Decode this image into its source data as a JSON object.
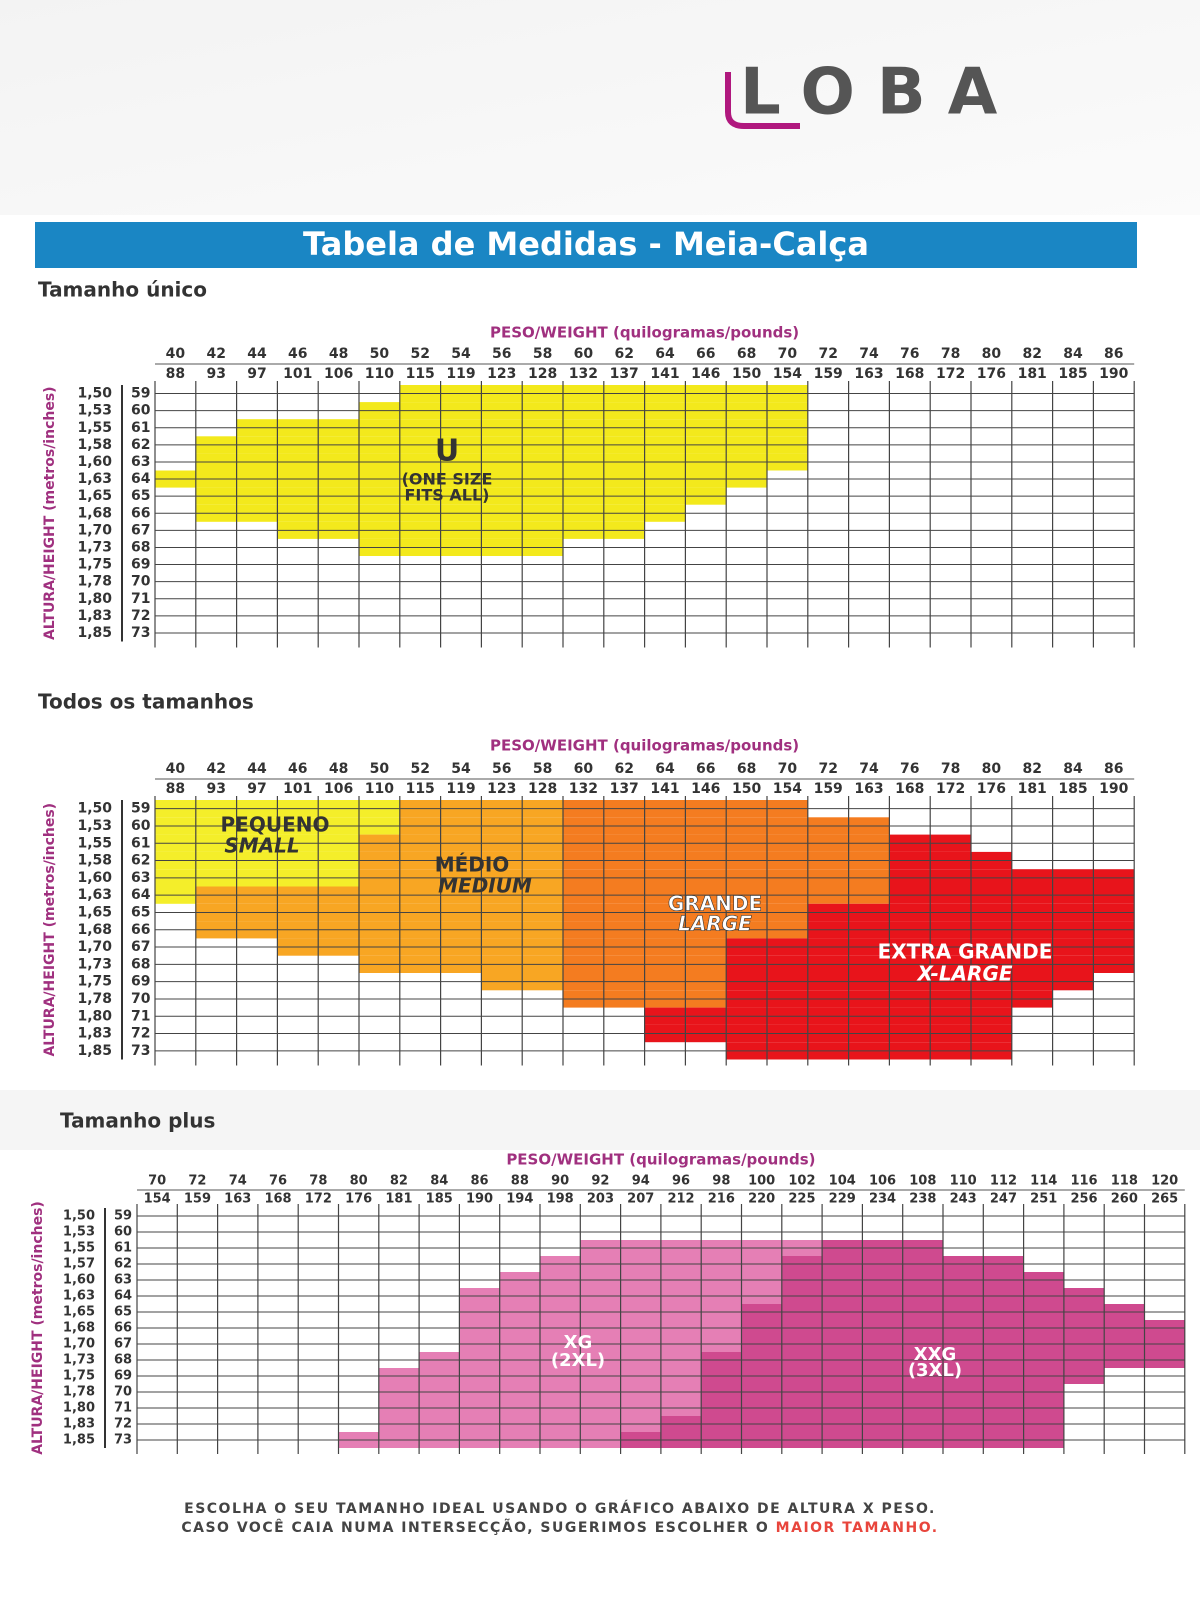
{
  "logo": "LOBA",
  "header": {
    "title": "Tabela de Medidas - Meia-Calça"
  },
  "tables": [
    {
      "subtitle": "Tamanho único",
      "x_axis_label": "PESO/WEIGHT (quilogramas/pounds)",
      "y_axis_label": "ALTURA/HEIGHT (metros/inches)",
      "weight_kg": [
        40,
        42,
        44,
        46,
        48,
        50,
        52,
        54,
        56,
        58,
        60,
        62,
        64,
        66,
        68,
        70,
        72,
        74,
        76,
        78,
        80,
        82,
        84,
        86
      ],
      "weight_lb": [
        88,
        93,
        97,
        101,
        106,
        110,
        115,
        119,
        123,
        128,
        132,
        137,
        141,
        146,
        150,
        154,
        159,
        163,
        168,
        172,
        176,
        181,
        185,
        190
      ],
      "height_m": [
        "1,50",
        "1,53",
        "1,55",
        "1,58",
        "1,60",
        "1,63",
        "1,65",
        "1,68",
        "1,70",
        "1,73",
        "1,75",
        "1,78",
        "1,80",
        "1,83",
        "1,85"
      ],
      "height_in": [
        59,
        60,
        61,
        62,
        63,
        64,
        65,
        66,
        67,
        68,
        69,
        70,
        71,
        72,
        73
      ],
      "sizes": [
        {
          "lines": [
            "U",
            "(ONE SIZE",
            "FITS ALL)"
          ]
        }
      ]
    },
    {
      "subtitle": "Todos os tamanhos",
      "x_axis_label": "PESO/WEIGHT (quilogramas/pounds)",
      "y_axis_label": "ALTURA/HEIGHT (metros/inches)",
      "weight_kg": [
        40,
        42,
        44,
        46,
        48,
        50,
        52,
        54,
        56,
        58,
        60,
        62,
        64,
        66,
        68,
        70,
        72,
        74,
        76,
        78,
        80,
        82,
        84,
        86
      ],
      "weight_lb": [
        88,
        93,
        97,
        101,
        106,
        110,
        115,
        119,
        123,
        128,
        132,
        137,
        141,
        146,
        150,
        154,
        159,
        163,
        168,
        172,
        176,
        181,
        185,
        190
      ],
      "height_m": [
        "1,50",
        "1,53",
        "1,55",
        "1,58",
        "1,60",
        "1,63",
        "1,65",
        "1,68",
        "1,70",
        "1,73",
        "1,75",
        "1,78",
        "1,80",
        "1,83",
        "1,85"
      ],
      "height_in": [
        59,
        60,
        61,
        62,
        63,
        64,
        65,
        66,
        67,
        68,
        69,
        70,
        71,
        72,
        73
      ],
      "sizes": [
        {
          "lines": [
            "PEQUENO",
            "SMALL"
          ]
        },
        {
          "lines": [
            "MÉDIO",
            "MEDIUM"
          ]
        },
        {
          "lines": [
            "GRANDE",
            "LARGE"
          ]
        },
        {
          "lines": [
            "EXTRA GRANDE",
            "X-LARGE"
          ]
        }
      ]
    },
    {
      "subtitle": "Tamanho plus",
      "x_axis_label": "PESO/WEIGHT (quilogramas/pounds)",
      "y_axis_label": "ALTURA/HEIGHT (metros/inches)",
      "weight_kg": [
        70,
        72,
        74,
        76,
        78,
        80,
        82,
        84,
        86,
        88,
        90,
        92,
        94,
        96,
        98,
        100,
        102,
        104,
        106,
        108,
        110,
        112,
        114,
        116,
        118,
        120
      ],
      "weight_lb": [
        154,
        159,
        163,
        168,
        172,
        176,
        181,
        185,
        190,
        194,
        198,
        203,
        207,
        212,
        216,
        220,
        225,
        229,
        234,
        238,
        243,
        247,
        251,
        256,
        260,
        265
      ],
      "height_m": [
        "1,50",
        "1,53",
        "1,55",
        "1,57",
        "1,60",
        "1,63",
        "1,65",
        "1,68",
        "1,70",
        "1,73",
        "1,75",
        "1,78",
        "1,80",
        "1,83",
        "1,85"
      ],
      "height_in": [
        59,
        60,
        61,
        62,
        63,
        64,
        65,
        66,
        67,
        68,
        69,
        70,
        71,
        72,
        73
      ],
      "sizes": [
        {
          "lines": [
            "XG",
            "(2XL)"
          ]
        },
        {
          "lines": [
            "XXG",
            "(3XL)"
          ]
        }
      ]
    }
  ],
  "footer": {
    "line1": "ESCOLHA O SEU TAMANHO IDEAL  USANDO O GRÁFICO ABAIXO DE ALTURA X PESO.",
    "line2": "CASO VOCÊ CAIA NUMA INTERSECÇÃO, SUGERIMOS ESCOLHER O",
    "highlight": "MAIOR TAMANHO."
  }
}
